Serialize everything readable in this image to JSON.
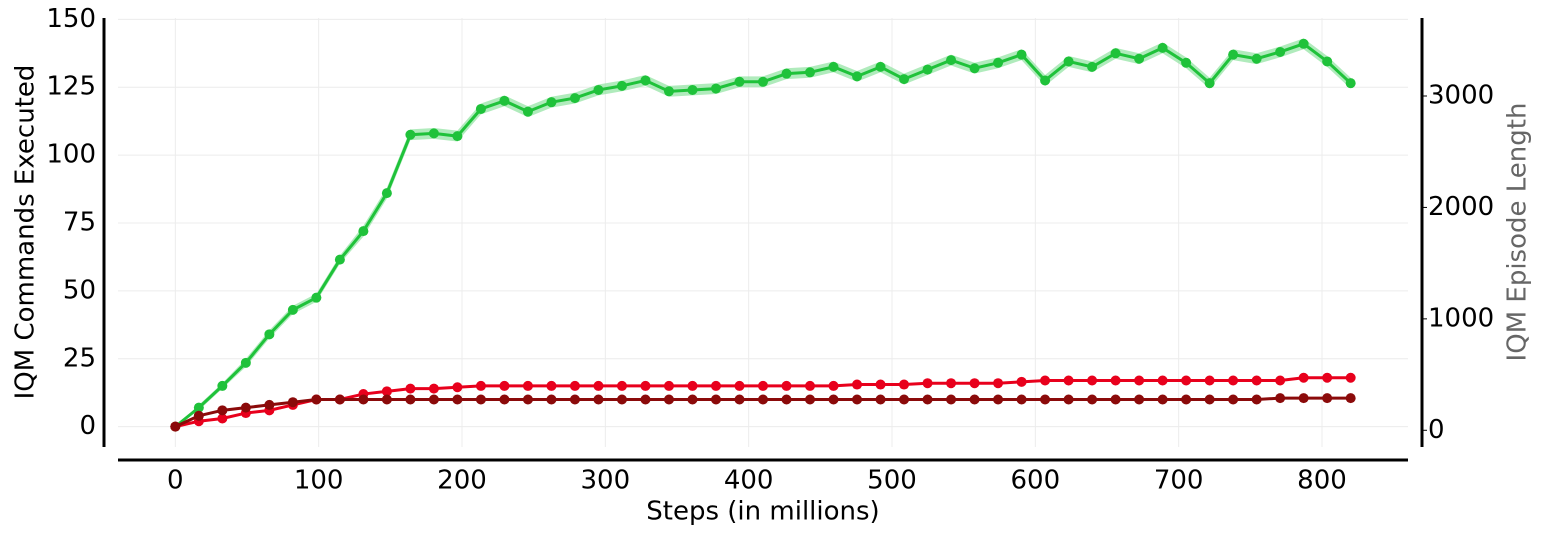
{
  "chart_data": {
    "type": "line",
    "xlabel": "Steps (in millions)",
    "ylabel": "IQM Commands Executed",
    "y2label": "IQM Episode Length",
    "x": [
      0,
      16.4,
      32.8,
      49.2,
      65.6,
      82,
      98.4,
      114.8,
      131.2,
      147.6,
      164,
      180.4,
      196.8,
      213.2,
      229.6,
      246,
      262.4,
      278.8,
      295.2,
      311.6,
      328,
      344.4,
      360.8,
      377.2,
      393.6,
      410,
      426.4,
      442.8,
      459.2,
      475.6,
      492,
      508.4,
      524.8,
      541.2,
      557.6,
      574,
      590.4,
      606.8,
      623.2,
      639.6,
      656,
      672.4,
      688.8,
      705.2,
      721.6,
      738,
      754.4,
      770.8,
      787.2,
      803.6,
      820
    ],
    "series": [
      {
        "color": "#1fc23a",
        "band_color": "#8fe39f",
        "values": [
          0,
          7,
          15,
          23.5,
          34,
          43,
          47.5,
          61.5,
          72,
          86,
          107.5,
          108,
          107,
          117,
          120,
          116,
          119.5,
          121,
          124,
          125.5,
          127.5,
          123.5,
          124,
          124.5,
          127,
          127,
          130,
          130.5,
          132.5,
          129,
          132.5,
          128,
          131.5,
          135,
          132,
          134,
          137,
          127.5,
          134.5,
          132.5,
          137.5,
          135.5,
          139.5,
          134,
          126.5,
          137,
          135.5,
          138,
          141,
          134.5,
          126.5
        ],
        "error": [
          0,
          1,
          1,
          1.5,
          1.5,
          1.5,
          1.5,
          1.5,
          2,
          2,
          2,
          2,
          2,
          2,
          2,
          2,
          2,
          2,
          2,
          2,
          2,
          2,
          2,
          2,
          2,
          2,
          2,
          2,
          2,
          2,
          2,
          2,
          2,
          2,
          2,
          2,
          2,
          2,
          2,
          2,
          2,
          2,
          2,
          2,
          2,
          2,
          2,
          2,
          2,
          2,
          2
        ]
      },
      {
        "color": "#e8001c",
        "values": [
          0,
          2,
          3,
          5,
          6,
          8,
          10,
          10,
          12,
          13,
          14,
          14,
          14.5,
          15,
          15,
          15,
          15,
          15,
          15,
          15,
          15,
          15,
          15,
          15,
          15,
          15,
          15,
          15,
          15,
          15.5,
          15.5,
          15.5,
          16,
          16,
          16,
          16,
          16.5,
          17,
          17,
          17,
          17,
          17,
          17,
          17,
          17,
          17,
          17,
          17,
          18,
          18,
          18
        ]
      },
      {
        "color": "#8b0a0a",
        "values": [
          0,
          4,
          6,
          7,
          8,
          9,
          10,
          10,
          10,
          10,
          10,
          10,
          10,
          10,
          10,
          10,
          10,
          10,
          10,
          10,
          10,
          10,
          10,
          10,
          10,
          10,
          10,
          10,
          10,
          10,
          10,
          10,
          10,
          10,
          10,
          10,
          10,
          10,
          10,
          10,
          10,
          10,
          10,
          10,
          10,
          10,
          10,
          10.5,
          10.5,
          10.5,
          10.5
        ]
      }
    ],
    "xlim": [
      -40,
      860
    ],
    "xticks": [
      0,
      100,
      200,
      300,
      400,
      500,
      600,
      700,
      800
    ],
    "ylim": [
      -7.5,
      150.5
    ],
    "yticks": [
      0,
      25,
      50,
      75,
      100,
      125,
      150
    ],
    "y2lim": [
      -150,
      3700
    ],
    "y2ticks": [
      0,
      1000,
      2000,
      3000
    ],
    "y2_color": "#666666",
    "grid": true
  }
}
